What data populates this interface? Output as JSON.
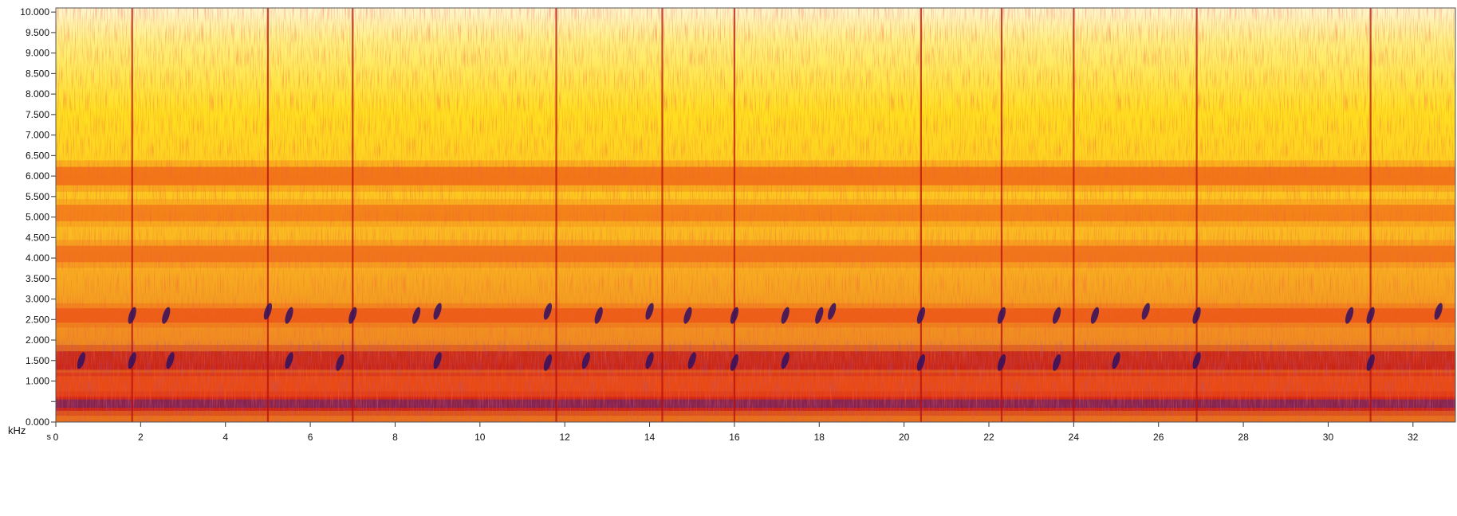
{
  "chart_data": {
    "type": "heatmap",
    "title": "",
    "xlabel": "s",
    "ylabel": "kHz",
    "xlim": [
      0,
      33
    ],
    "ylim": [
      0,
      10.1
    ],
    "x_ticks": [
      "0",
      "2",
      "4",
      "6",
      "8",
      "10",
      "12",
      "14",
      "16",
      "18",
      "20",
      "22",
      "24",
      "26",
      "28",
      "30",
      "32"
    ],
    "x_tick_values": [
      0,
      2,
      4,
      6,
      8,
      10,
      12,
      14,
      16,
      18,
      20,
      22,
      24,
      26,
      28,
      30,
      32
    ],
    "y_ticks": [
      "0.000",
      "",
      "1.000",
      "1.500",
      "2.000",
      "2.500",
      "3.000",
      "3.500",
      "4.000",
      "4.500",
      "5.000",
      "5.500",
      "6.000",
      "6.500",
      "7.000",
      "7.500",
      "8.000",
      "8.500",
      "9.000",
      "9.500",
      "10.000"
    ],
    "y_tick_values": [
      0,
      0.5,
      1.0,
      1.5,
      2.0,
      2.5,
      3.0,
      3.5,
      4.0,
      4.5,
      5.0,
      5.5,
      6.0,
      6.5,
      7.0,
      7.5,
      8.0,
      8.5,
      9.0,
      9.5,
      10.0
    ],
    "colormap": [
      "#fff8d8",
      "#ffe830",
      "#f8b020",
      "#f03010",
      "#c81018",
      "#502070",
      "#201040"
    ],
    "bands": [
      {
        "freq_khz": 0.45,
        "width_khz": 0.35,
        "intensity": 0.9
      },
      {
        "freq_khz": 0.9,
        "width_khz": 0.6,
        "intensity": 0.7
      },
      {
        "freq_khz": 1.5,
        "width_khz": 0.45,
        "intensity": 0.85
      },
      {
        "freq_khz": 2.6,
        "width_khz": 0.35,
        "intensity": 0.55
      },
      {
        "freq_khz": 4.1,
        "width_khz": 0.4,
        "intensity": 0.45
      },
      {
        "freq_khz": 5.1,
        "width_khz": 0.4,
        "intensity": 0.4
      },
      {
        "freq_khz": 6.0,
        "width_khz": 0.45,
        "intensity": 0.55
      }
    ],
    "transients_s": [
      1.8,
      5.0,
      7.0,
      11.8,
      14.3,
      16.0,
      20.4,
      22.3,
      24.0,
      26.9,
      31.0
    ],
    "call_events": [
      {
        "t": 1.8,
        "f": 2.6
      },
      {
        "t": 2.6,
        "f": 2.6
      },
      {
        "t": 5.0,
        "f": 2.7
      },
      {
        "t": 5.5,
        "f": 2.6
      },
      {
        "t": 7.0,
        "f": 2.6
      },
      {
        "t": 8.5,
        "f": 2.6
      },
      {
        "t": 9.0,
        "f": 2.7
      },
      {
        "t": 11.6,
        "f": 2.7
      },
      {
        "t": 12.8,
        "f": 2.6
      },
      {
        "t": 14.0,
        "f": 2.7
      },
      {
        "t": 14.9,
        "f": 2.6
      },
      {
        "t": 16.0,
        "f": 2.6
      },
      {
        "t": 17.2,
        "f": 2.6
      },
      {
        "t": 18.0,
        "f": 2.6
      },
      {
        "t": 18.3,
        "f": 2.7
      },
      {
        "t": 20.4,
        "f": 2.6
      },
      {
        "t": 22.3,
        "f": 2.6
      },
      {
        "t": 23.6,
        "f": 2.6
      },
      {
        "t": 24.5,
        "f": 2.6
      },
      {
        "t": 25.7,
        "f": 2.7
      },
      {
        "t": 26.9,
        "f": 2.6
      },
      {
        "t": 30.5,
        "f": 2.6
      },
      {
        "t": 31.0,
        "f": 2.6
      },
      {
        "t": 32.6,
        "f": 2.7
      },
      {
        "t": 0.6,
        "f": 1.5
      },
      {
        "t": 1.8,
        "f": 1.5
      },
      {
        "t": 2.7,
        "f": 1.5
      },
      {
        "t": 5.5,
        "f": 1.5
      },
      {
        "t": 6.7,
        "f": 1.45
      },
      {
        "t": 9.0,
        "f": 1.5
      },
      {
        "t": 11.6,
        "f": 1.45
      },
      {
        "t": 12.5,
        "f": 1.5
      },
      {
        "t": 14.0,
        "f": 1.5
      },
      {
        "t": 15.0,
        "f": 1.5
      },
      {
        "t": 16.0,
        "f": 1.45
      },
      {
        "t": 17.2,
        "f": 1.5
      },
      {
        "t": 20.4,
        "f": 1.45
      },
      {
        "t": 22.3,
        "f": 1.45
      },
      {
        "t": 23.6,
        "f": 1.45
      },
      {
        "t": 25.0,
        "f": 1.5
      },
      {
        "t": 26.9,
        "f": 1.5
      },
      {
        "t": 31.0,
        "f": 1.45
      }
    ]
  }
}
